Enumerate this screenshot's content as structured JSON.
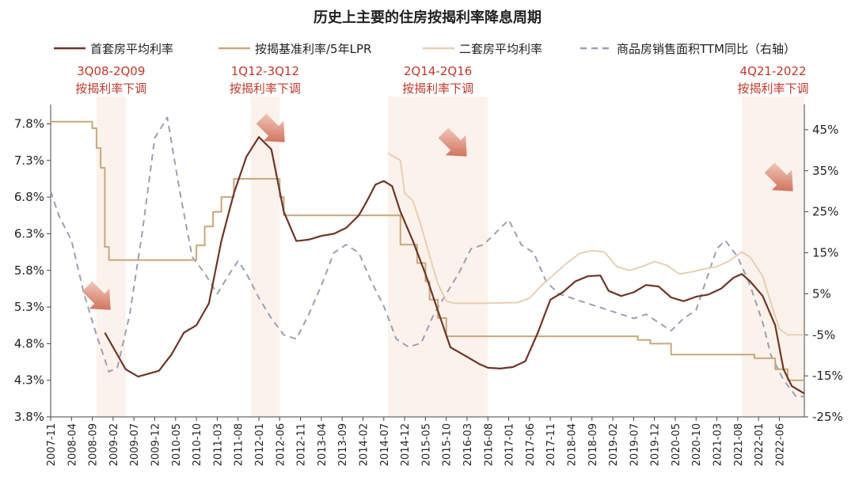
{
  "chart_data": {
    "type": "line",
    "title": "历史上主要的住房按揭利率降息周期",
    "colors": {
      "first_home": "#6e3526",
      "benchmark": "#c9a77a",
      "second_home": "#e8cfb3",
      "sales_yoy": "#9a9fb8",
      "annotation_text": "#c0392b",
      "shade": "#fbf2ec",
      "arrow": "#c8553d"
    },
    "legend": [
      {
        "key": "first_home",
        "label": "首套房平均利率"
      },
      {
        "key": "benchmark",
        "label": "按揭基准利率/5年LPR"
      },
      {
        "key": "second_home",
        "label": "二套房平均利率"
      },
      {
        "key": "sales_yoy",
        "label": "商品房销售面积TTM同比（右轴）"
      }
    ],
    "y_left": {
      "min": 3.8,
      "max": 8.0,
      "ticks": [
        "3.8%",
        "4.3%",
        "4.8%",
        "5.3%",
        "5.8%",
        "6.3%",
        "6.8%",
        "7.3%",
        "7.8%"
      ]
    },
    "y_right": {
      "min": -25,
      "max": 50,
      "ticks": [
        "-25%",
        "-15%",
        "-5%",
        "5%",
        "15%",
        "25%",
        "35%",
        "45%"
      ]
    },
    "x_ticks": [
      "2007-11",
      "2008-04",
      "2008-09",
      "2009-02",
      "2009-07",
      "2009-12",
      "2010-05",
      "2010-10",
      "2011-03",
      "2011-08",
      "2012-01",
      "2012-06",
      "2012-11",
      "2013-04",
      "2013-09",
      "2014-02",
      "2014-07",
      "2014-12",
      "2015-05",
      "2015-10",
      "2016-03",
      "2016-08",
      "2017-01",
      "2017-06",
      "2017-11",
      "2018-04",
      "2018-09",
      "2019-02",
      "2019-07",
      "2019-12",
      "2020-05",
      "2020-10",
      "2021-03",
      "2021-08",
      "2022-01",
      "2022-06"
    ],
    "x_range": [
      "2007-11",
      "2022-12"
    ],
    "cycles": [
      {
        "start": "2008-10",
        "end": "2009-05",
        "label1": "3Q08-2Q09",
        "label2": "按揭利率下调"
      },
      {
        "start": "2011-11",
        "end": "2012-06",
        "label1": "1Q12-3Q12",
        "label2": "按揭利率下调"
      },
      {
        "start": "2014-08",
        "end": "2016-08",
        "label1": "2Q14-2Q16",
        "label2": "按揭利率下调"
      },
      {
        "start": "2021-09",
        "end": "2022-12",
        "label1": "4Q21-2022",
        "label2": "按揭利率下调"
      }
    ],
    "series": [
      {
        "key": "first_home",
        "axis": "left",
        "step": false,
        "points": [
          [
            "2008-12",
            4.95
          ],
          [
            "2009-05",
            4.45
          ],
          [
            "2009-08",
            4.35
          ],
          [
            "2010-01",
            4.43
          ],
          [
            "2010-04",
            4.65
          ],
          [
            "2010-07",
            4.95
          ],
          [
            "2010-10",
            5.05
          ],
          [
            "2011-01",
            5.35
          ],
          [
            "2011-04",
            6.2
          ],
          [
            "2011-07",
            6.85
          ],
          [
            "2011-10",
            7.35
          ],
          [
            "2012-01",
            7.62
          ],
          [
            "2012-04",
            7.45
          ],
          [
            "2012-07",
            6.6
          ],
          [
            "2012-10",
            6.2
          ],
          [
            "2013-01",
            6.22
          ],
          [
            "2013-04",
            6.27
          ],
          [
            "2013-07",
            6.3
          ],
          [
            "2013-10",
            6.38
          ],
          [
            "2014-01",
            6.55
          ],
          [
            "2014-03",
            6.75
          ],
          [
            "2014-05",
            6.97
          ],
          [
            "2014-07",
            7.02
          ],
          [
            "2014-09",
            6.95
          ],
          [
            "2014-11",
            6.6
          ],
          [
            "2015-02",
            6.2
          ],
          [
            "2015-05",
            5.75
          ],
          [
            "2015-08",
            5.25
          ],
          [
            "2015-11",
            4.75
          ],
          [
            "2016-03",
            4.62
          ],
          [
            "2016-06",
            4.52
          ],
          [
            "2016-08",
            4.47
          ],
          [
            "2016-11",
            4.46
          ],
          [
            "2017-02",
            4.48
          ],
          [
            "2017-05",
            4.56
          ],
          [
            "2017-08",
            4.95
          ],
          [
            "2017-11",
            5.4
          ],
          [
            "2018-02",
            5.5
          ],
          [
            "2018-05",
            5.65
          ],
          [
            "2018-08",
            5.72
          ],
          [
            "2018-11",
            5.73
          ],
          [
            "2019-01",
            5.52
          ],
          [
            "2019-04",
            5.45
          ],
          [
            "2019-07",
            5.5
          ],
          [
            "2019-10",
            5.6
          ],
          [
            "2020-01",
            5.58
          ],
          [
            "2020-04",
            5.43
          ],
          [
            "2020-07",
            5.38
          ],
          [
            "2020-10",
            5.44
          ],
          [
            "2021-01",
            5.47
          ],
          [
            "2021-04",
            5.55
          ],
          [
            "2021-07",
            5.7
          ],
          [
            "2021-09",
            5.75
          ],
          [
            "2021-11",
            5.65
          ],
          [
            "2022-02",
            5.45
          ],
          [
            "2022-05",
            5.05
          ],
          [
            "2022-07",
            4.45
          ],
          [
            "2022-09",
            4.22
          ],
          [
            "2022-12",
            4.12
          ]
        ]
      },
      {
        "key": "benchmark",
        "axis": "left",
        "step": true,
        "points": [
          [
            "2007-11",
            7.83
          ],
          [
            "2008-09",
            7.74
          ],
          [
            "2008-10",
            7.47
          ],
          [
            "2008-11",
            7.2
          ],
          [
            "2008-12",
            6.12
          ],
          [
            "2009-01",
            5.94
          ],
          [
            "2010-10",
            6.14
          ],
          [
            "2010-12",
            6.4
          ],
          [
            "2011-02",
            6.6
          ],
          [
            "2011-04",
            6.8
          ],
          [
            "2011-07",
            7.05
          ],
          [
            "2012-06",
            6.8
          ],
          [
            "2012-07",
            6.55
          ],
          [
            "2014-11",
            6.15
          ],
          [
            "2015-03",
            5.9
          ],
          [
            "2015-05",
            5.65
          ],
          [
            "2015-06",
            5.4
          ],
          [
            "2015-08",
            5.15
          ],
          [
            "2015-10",
            4.9
          ],
          [
            "2019-08",
            4.85
          ],
          [
            "2019-11",
            4.8
          ],
          [
            "2020-04",
            4.65
          ],
          [
            "2021-12",
            4.6
          ],
          [
            "2022-05",
            4.45
          ],
          [
            "2022-08",
            4.3
          ],
          [
            "2022-12",
            4.3
          ]
        ]
      },
      {
        "key": "second_home",
        "axis": "left",
        "step": false,
        "points": [
          [
            "2014-08",
            7.4
          ],
          [
            "2014-11",
            7.3
          ],
          [
            "2014-12",
            6.85
          ],
          [
            "2015-02",
            6.75
          ],
          [
            "2015-04",
            6.4
          ],
          [
            "2015-06",
            6.0
          ],
          [
            "2015-08",
            5.62
          ],
          [
            "2015-10",
            5.38
          ],
          [
            "2015-12",
            5.35
          ],
          [
            "2016-06",
            5.35
          ],
          [
            "2017-03",
            5.36
          ],
          [
            "2017-06",
            5.42
          ],
          [
            "2017-09",
            5.6
          ],
          [
            "2017-12",
            5.75
          ],
          [
            "2018-03",
            5.9
          ],
          [
            "2018-06",
            6.03
          ],
          [
            "2018-09",
            6.07
          ],
          [
            "2018-12",
            6.05
          ],
          [
            "2019-03",
            5.85
          ],
          [
            "2019-06",
            5.8
          ],
          [
            "2019-09",
            5.85
          ],
          [
            "2019-12",
            5.92
          ],
          [
            "2020-03",
            5.87
          ],
          [
            "2020-06",
            5.75
          ],
          [
            "2020-09",
            5.78
          ],
          [
            "2020-12",
            5.82
          ],
          [
            "2021-03",
            5.85
          ],
          [
            "2021-06",
            5.93
          ],
          [
            "2021-09",
            6.05
          ],
          [
            "2021-11",
            5.98
          ],
          [
            "2022-02",
            5.72
          ],
          [
            "2022-04",
            5.35
          ],
          [
            "2022-06",
            5.0
          ],
          [
            "2022-08",
            4.92
          ],
          [
            "2022-12",
            4.92
          ]
        ]
      },
      {
        "key": "sales_yoy",
        "axis": "right",
        "step": false,
        "dashed": true,
        "points": [
          [
            "2007-11",
            30
          ],
          [
            "2008-01",
            24
          ],
          [
            "2008-04",
            18
          ],
          [
            "2008-07",
            5
          ],
          [
            "2008-10",
            -5
          ],
          [
            "2009-01",
            -14
          ],
          [
            "2009-03",
            -13
          ],
          [
            "2009-06",
            0
          ],
          [
            "2009-09",
            20
          ],
          [
            "2009-12",
            43
          ],
          [
            "2010-03",
            48
          ],
          [
            "2010-06",
            30
          ],
          [
            "2010-09",
            14
          ],
          [
            "2010-12",
            10
          ],
          [
            "2011-03",
            5
          ],
          [
            "2011-06",
            10
          ],
          [
            "2011-08",
            13
          ],
          [
            "2011-10",
            10
          ],
          [
            "2012-01",
            4
          ],
          [
            "2012-04",
            -1
          ],
          [
            "2012-07",
            -5
          ],
          [
            "2012-10",
            -6
          ],
          [
            "2013-01",
            0
          ],
          [
            "2013-04",
            7
          ],
          [
            "2013-07",
            15
          ],
          [
            "2013-10",
            17
          ],
          [
            "2014-01",
            15
          ],
          [
            "2014-04",
            8
          ],
          [
            "2014-07",
            2
          ],
          [
            "2014-10",
            -6
          ],
          [
            "2015-01",
            -8
          ],
          [
            "2015-04",
            -7
          ],
          [
            "2015-07",
            0
          ],
          [
            "2015-10",
            5
          ],
          [
            "2016-01",
            10
          ],
          [
            "2016-04",
            16
          ],
          [
            "2016-07",
            17
          ],
          [
            "2016-10",
            20
          ],
          [
            "2017-01",
            23
          ],
          [
            "2017-04",
            17
          ],
          [
            "2017-07",
            15
          ],
          [
            "2017-10",
            8
          ],
          [
            "2018-01",
            5
          ],
          [
            "2018-04",
            4
          ],
          [
            "2018-07",
            3
          ],
          [
            "2018-10",
            2
          ],
          [
            "2019-01",
            1
          ],
          [
            "2019-04",
            0
          ],
          [
            "2019-07",
            -1
          ],
          [
            "2019-10",
            0
          ],
          [
            "2020-01",
            -2
          ],
          [
            "2020-04",
            -4
          ],
          [
            "2020-07",
            -1
          ],
          [
            "2020-10",
            1
          ],
          [
            "2021-01",
            10
          ],
          [
            "2021-03",
            16
          ],
          [
            "2021-05",
            18
          ],
          [
            "2021-08",
            14
          ],
          [
            "2021-11",
            7
          ],
          [
            "2022-02",
            -2
          ],
          [
            "2022-04",
            -10
          ],
          [
            "2022-07",
            -16
          ],
          [
            "2022-10",
            -20
          ],
          [
            "2022-12",
            -20
          ]
        ]
      }
    ]
  }
}
